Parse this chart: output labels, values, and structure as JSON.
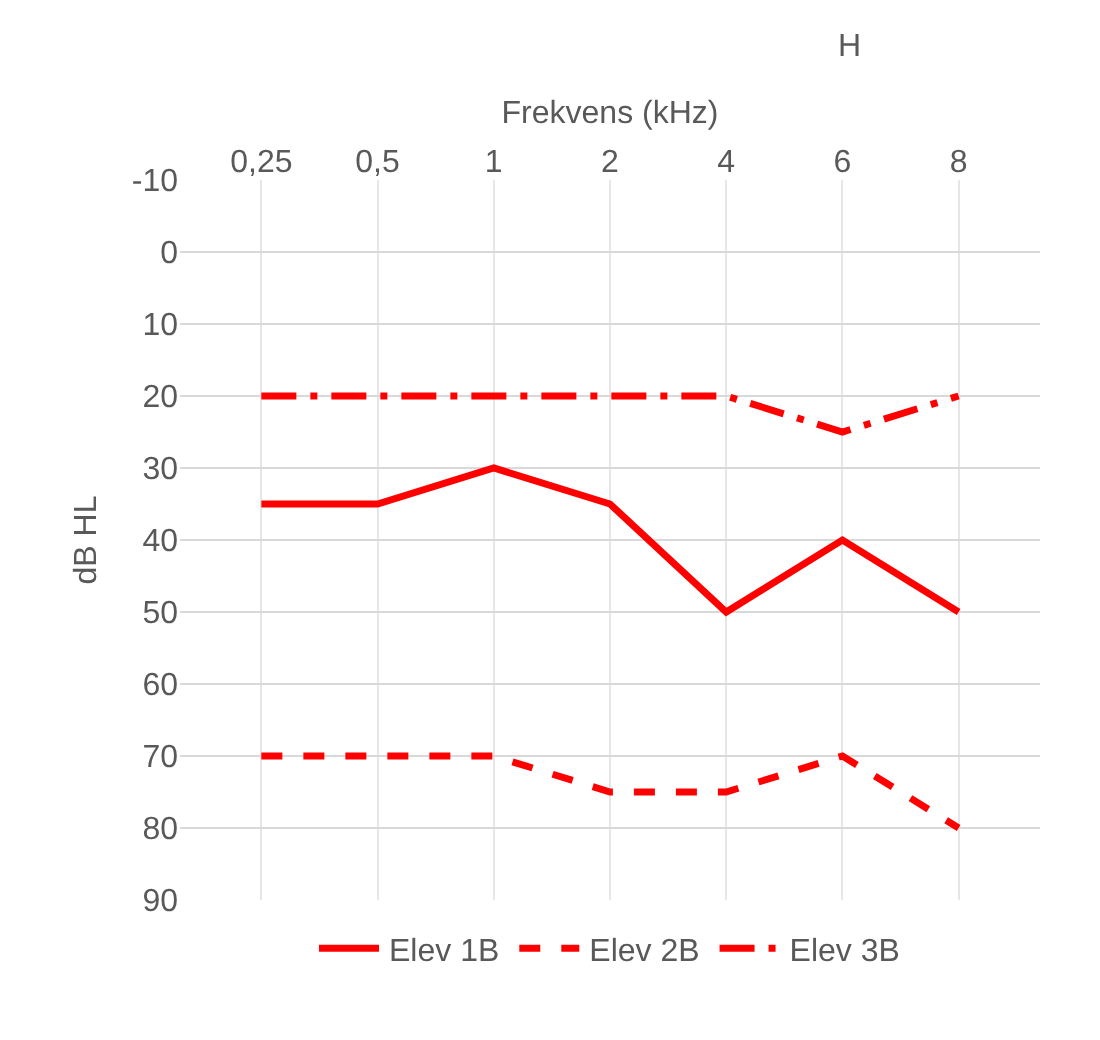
{
  "chart_data": {
    "type": "line",
    "xlabel": "Frekvens (kHz)",
    "ylabel": "dB HL",
    "annotations": [
      "H"
    ],
    "categories": [
      "0,25",
      "0,5",
      "1",
      "2",
      "4",
      "6",
      "8"
    ],
    "series": [
      {
        "name": "Elev 1B",
        "color": "#ff0000",
        "line_style": "solid",
        "values": [
          35,
          35,
          30,
          35,
          50,
          40,
          50
        ]
      },
      {
        "name": "Elev 2B",
        "color": "#ff0000",
        "line_style": "dashed",
        "values": [
          70,
          70,
          70,
          75,
          75,
          70,
          80
        ]
      },
      {
        "name": "Elev 3B",
        "color": "#ff0000",
        "line_style": "dashdot",
        "values": [
          20,
          20,
          20,
          20,
          20,
          25,
          20
        ]
      }
    ],
    "ylim": [
      90,
      -10
    ],
    "yticks": [
      -10,
      0,
      10,
      20,
      30,
      40,
      50,
      60,
      70,
      80,
      90
    ],
    "grid": true,
    "legend": "bottom",
    "marker": "none"
  }
}
